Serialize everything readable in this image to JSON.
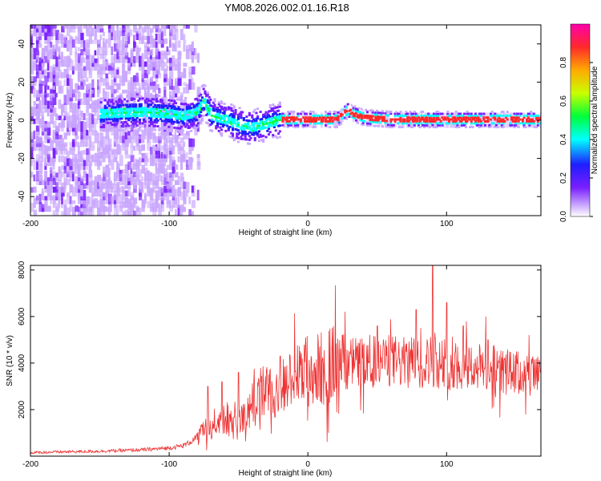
{
  "chart_data": [
    {
      "type": "heatmap",
      "title": "YM08.2026.002.01.16.R18",
      "xlabel": "Height of straight line (km)",
      "ylabel": "Frequency (Hz)",
      "xlim": [
        -200,
        168
      ],
      "ylim": [
        -50,
        50
      ],
      "x_ticks": [
        -200,
        -100,
        0,
        100
      ],
      "y_ticks": [
        -40,
        -20,
        0,
        20,
        40
      ],
      "colorbar": {
        "label": "Normalized spectral amplitude",
        "range": [
          0,
          1
        ],
        "ticks": [
          "0.0",
          "0.2",
          "0.4",
          "0.6",
          "0.8"
        ],
        "colors": [
          "#ffffff",
          "#c9a6ff",
          "#7a1fff",
          "#1e1eff",
          "#00ffff",
          "#00ff3a",
          "#c8ff00",
          "#ffaa00",
          "#ff2a2a",
          "#ff00aa"
        ]
      },
      "ridge": {
        "x": [
          -150,
          -120,
          -100,
          -90,
          -80,
          -76,
          -70,
          -60,
          -50,
          -40,
          -30,
          -20,
          0,
          20,
          28,
          32,
          40,
          60,
          80,
          100,
          120,
          140,
          168
        ],
        "y": [
          3,
          4,
          3,
          2,
          4,
          10,
          2,
          0,
          -3,
          -4,
          -2,
          0,
          0,
          0,
          5,
          3,
          1,
          0,
          0,
          0,
          0,
          0,
          0
        ]
      }
    },
    {
      "type": "line",
      "xlabel": "Height of straight line (km)",
      "ylabel": "SNR (10 * v/v)",
      "xlim": [
        -200,
        168
      ],
      "ylim": [
        0,
        8200
      ],
      "x_ticks": [
        -200,
        -100,
        0,
        100
      ],
      "y_ticks": [
        2000,
        4000,
        6000,
        8000
      ],
      "line_color": "#ee3333",
      "series": [
        {
          "name": "SNR",
          "x": [
            -200,
            -180,
            -160,
            -140,
            -120,
            -100,
            -90,
            -85,
            -80,
            -75,
            -70,
            -65,
            -60,
            -55,
            -50,
            -45,
            -40,
            -35,
            -30,
            -25,
            -20,
            -15,
            -10,
            -5,
            0,
            5,
            10,
            15,
            20,
            25,
            30,
            40,
            50,
            60,
            70,
            80,
            90,
            100,
            110,
            120,
            130,
            140,
            150,
            160,
            168
          ],
          "values": [
            150,
            180,
            200,
            230,
            270,
            350,
            450,
            600,
            800,
            1100,
            1300,
            1500,
            1700,
            1400,
            1900,
            1500,
            2200,
            2600,
            2800,
            2500,
            2900,
            3100,
            3300,
            3500,
            3700,
            3600,
            3800,
            3900,
            4000,
            3950,
            4000,
            4050,
            4050,
            4100,
            4000,
            4000,
            4100,
            3950,
            3900,
            3850,
            3750,
            3650,
            3550,
            3450,
            3350
          ],
          "spikes": [
            [
              -72,
              3000
            ],
            [
              -62,
              3200
            ],
            [
              -50,
              3600
            ],
            [
              -20,
              4300
            ],
            [
              25,
              5200
            ],
            [
              50,
              5600
            ],
            [
              78,
              6300
            ],
            [
              90,
              8200
            ],
            [
              100,
              6600
            ],
            [
              112,
              5600
            ],
            [
              130,
              5000
            ]
          ]
        }
      ]
    }
  ]
}
